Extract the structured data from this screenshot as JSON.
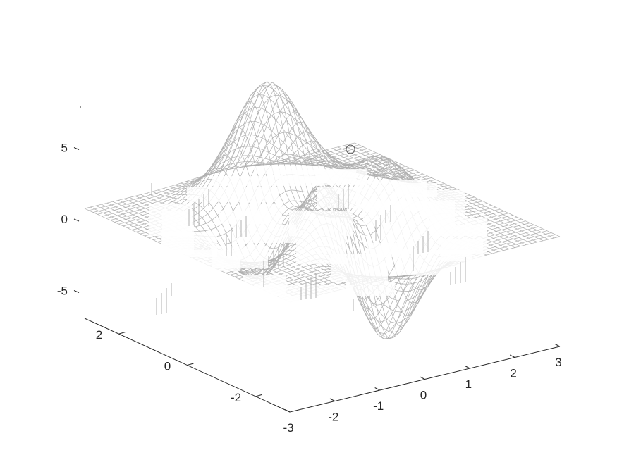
{
  "chart_data": {
    "type": "surface",
    "title": "",
    "xlabel": "",
    "ylabel": "",
    "zlabel": "",
    "x_range": [
      -3,
      3
    ],
    "y_range": [
      -3,
      3
    ],
    "z_range": [
      -8,
      8
    ],
    "x_ticks": [
      -2,
      -1,
      0,
      1,
      2,
      3
    ],
    "x_tick_labels": [
      "-2",
      "-1",
      "0",
      "1",
      "2",
      "3"
    ],
    "x_axis_start_label": "-3",
    "y_ticks": [
      -2,
      0,
      2
    ],
    "y_tick_labels": [
      "-2",
      "0",
      "2"
    ],
    "z_ticks": [
      -5,
      0,
      5
    ],
    "z_tick_labels": [
      "-5",
      "0",
      "5"
    ],
    "surface": {
      "function": "peaks",
      "grid_points": 49,
      "peak_value": 8.1,
      "trough_value": -6.55,
      "style": "mesh"
    },
    "colors": {
      "mesh": "#b0b0b0",
      "axes": "#262626",
      "background": "#ffffff",
      "overlay": "#ffffff"
    }
  }
}
